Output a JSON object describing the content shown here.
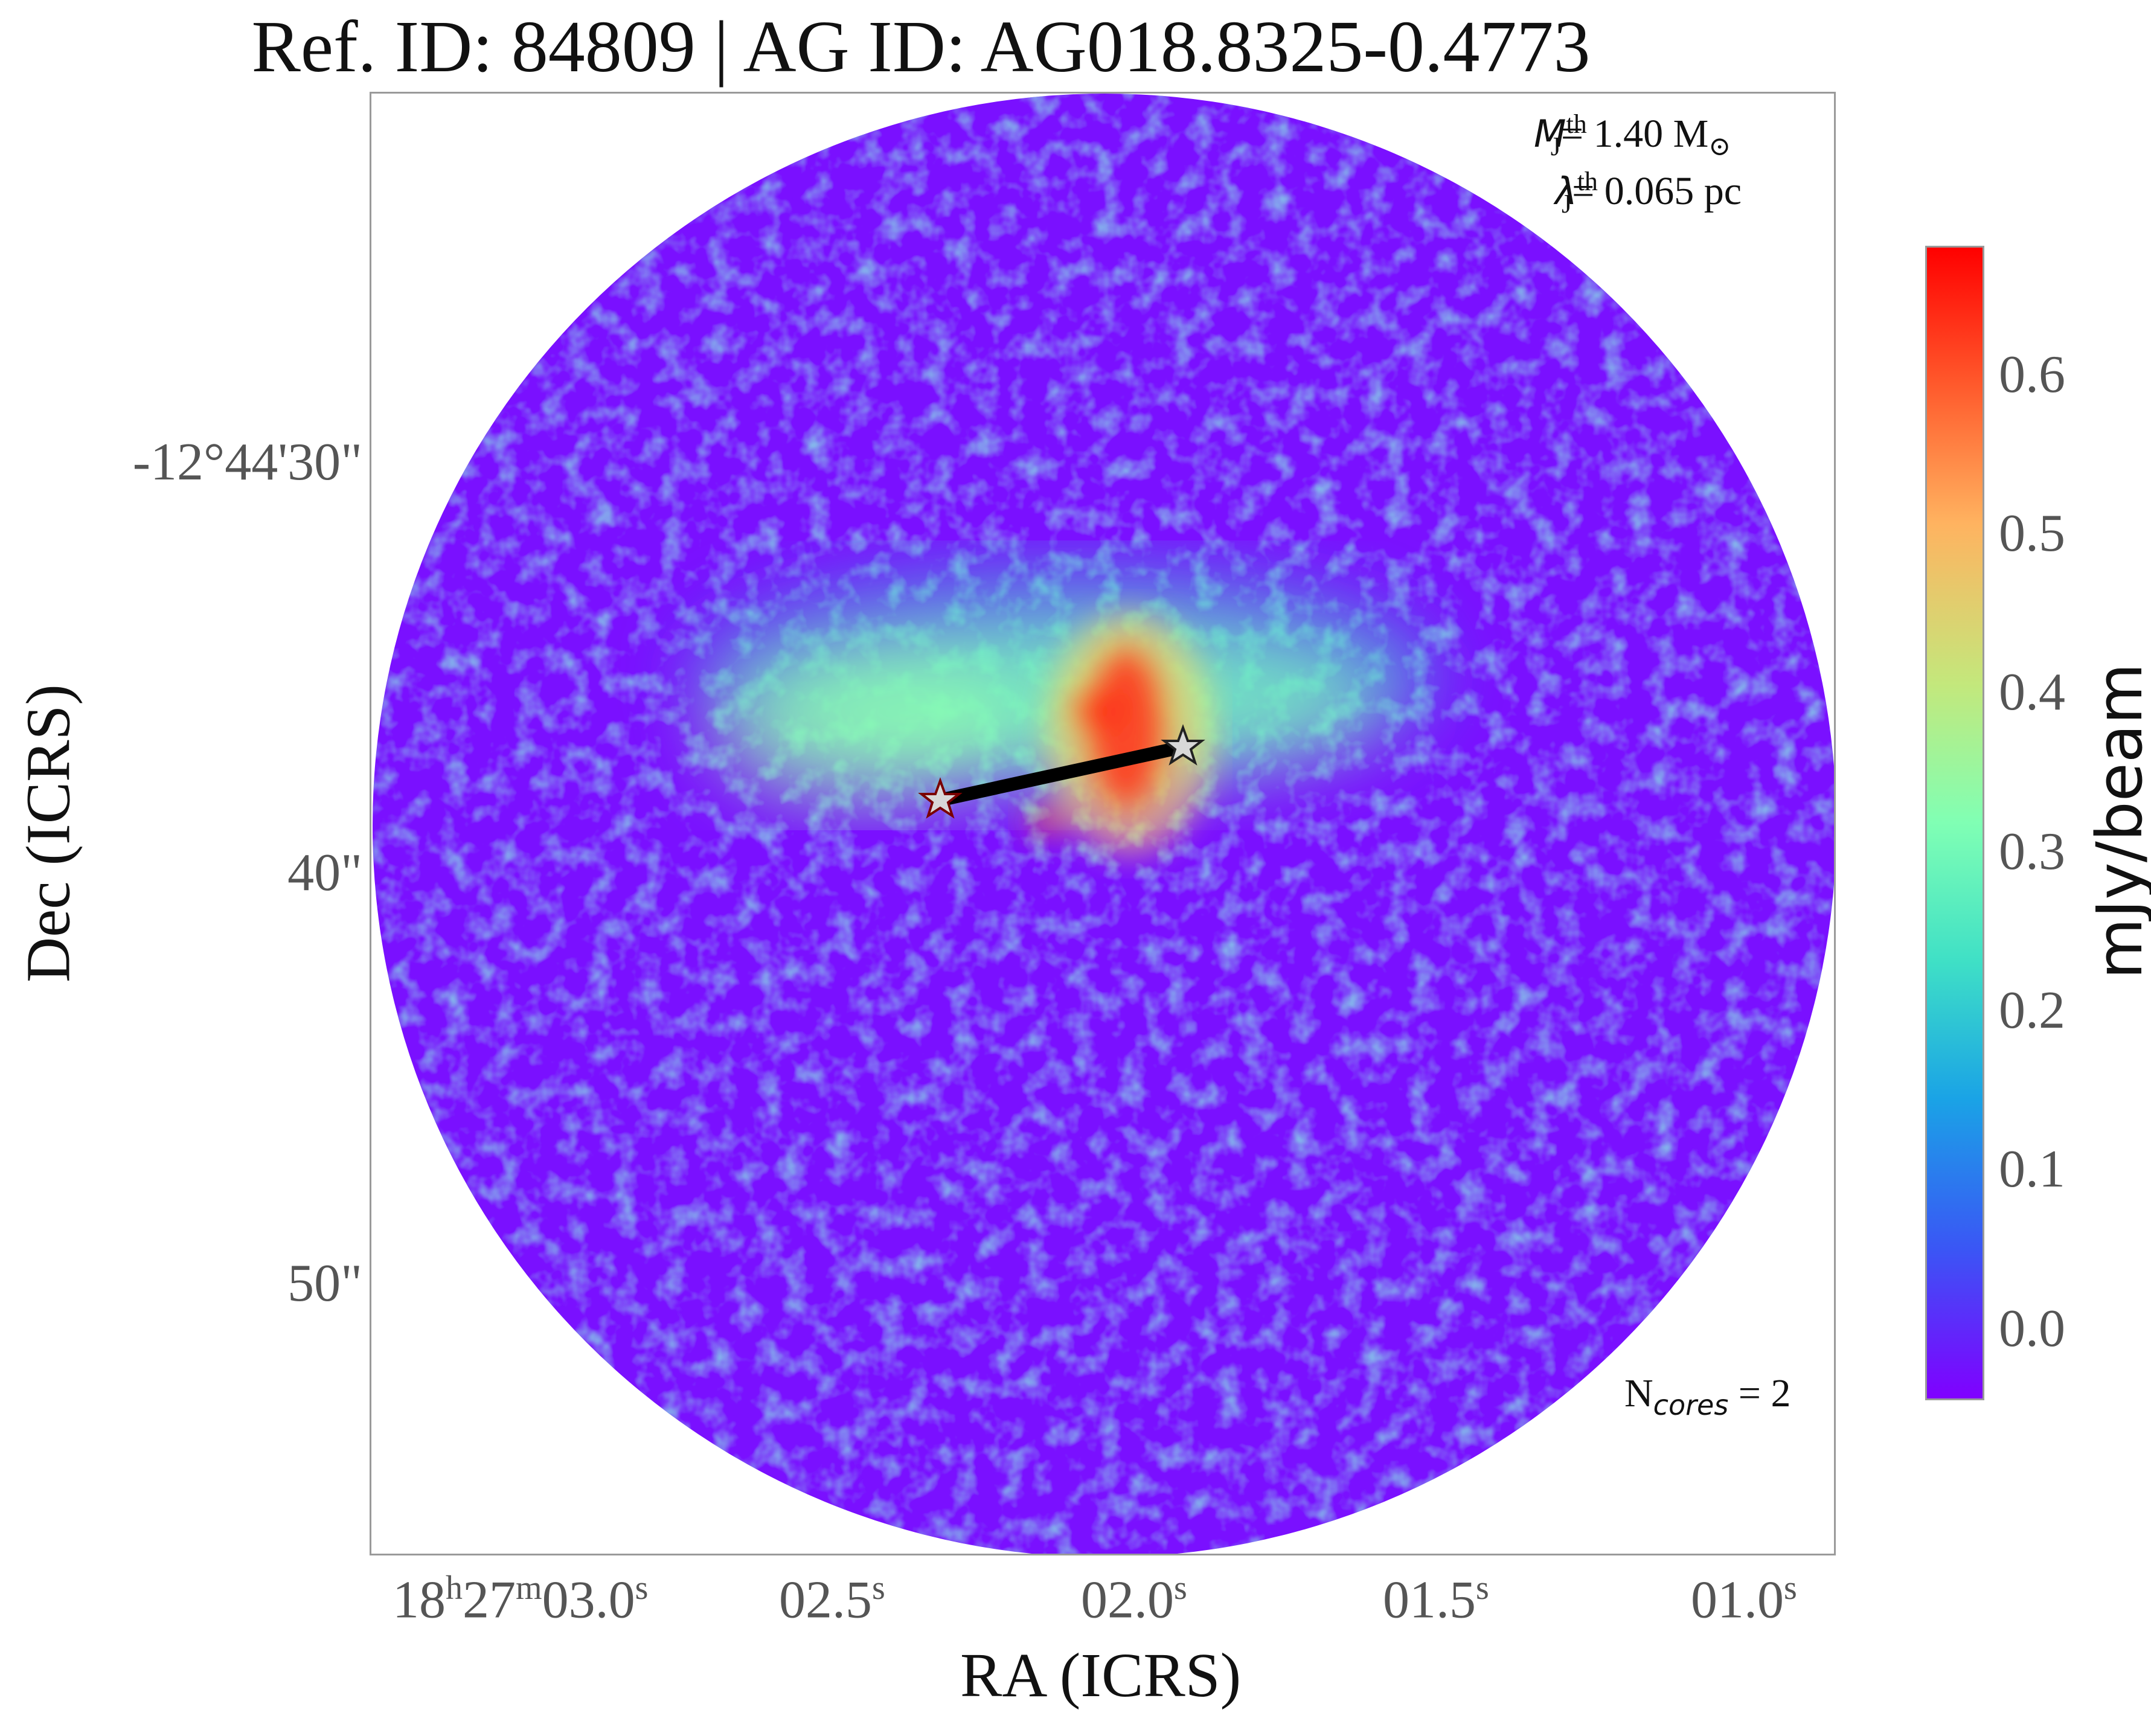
{
  "title": "Ref. ID: 84809 | AG ID: AG018.8325-0.4773",
  "annotations": {
    "mass_symbol": "M",
    "mass_sub": "J",
    "mass_sup": "th",
    "mass_value": "= 1.40 M",
    "mass_unit_symbol": "⊙",
    "length_symbol": "λ",
    "length_sub": "J",
    "length_sup": "th",
    "length_value": "= 0.065 pc",
    "ncores_label": "N",
    "ncores_sub": "cores",
    "ncores_value": " = 2"
  },
  "axes": {
    "xlabel": "RA (ICRS)",
    "ylabel": "Dec (ICRS)",
    "x_ticks": [
      {
        "main": "18",
        "h": "h",
        "m_val": "27",
        "m": "m",
        "s_val": "03.0",
        "s": "s"
      },
      {
        "s_val": "02.5",
        "s": "s"
      },
      {
        "s_val": "02.0",
        "s": "s"
      },
      {
        "s_val": "01.5",
        "s": "s"
      },
      {
        "s_val": "01.0",
        "s": "s"
      }
    ],
    "y_ticks": [
      "-12°44'30\"",
      "40\"",
      "50\""
    ]
  },
  "colorbar": {
    "label": "mJy/beam",
    "ticks": [
      "0.6",
      "0.5",
      "0.4",
      "0.3",
      "0.2",
      "0.1",
      "0.0"
    ],
    "range": [
      -0.05,
      0.685
    ],
    "colormap": "rainbow"
  },
  "cores": [
    {
      "marker": "star",
      "fill": "#d8d8d8"
    },
    {
      "marker": "star",
      "fill": "#d8d8d8"
    }
  ],
  "colors": {
    "background_low": "#8000ff",
    "mid": "#3fe0c6",
    "high": "#ff0000",
    "connector": "#000000"
  }
}
